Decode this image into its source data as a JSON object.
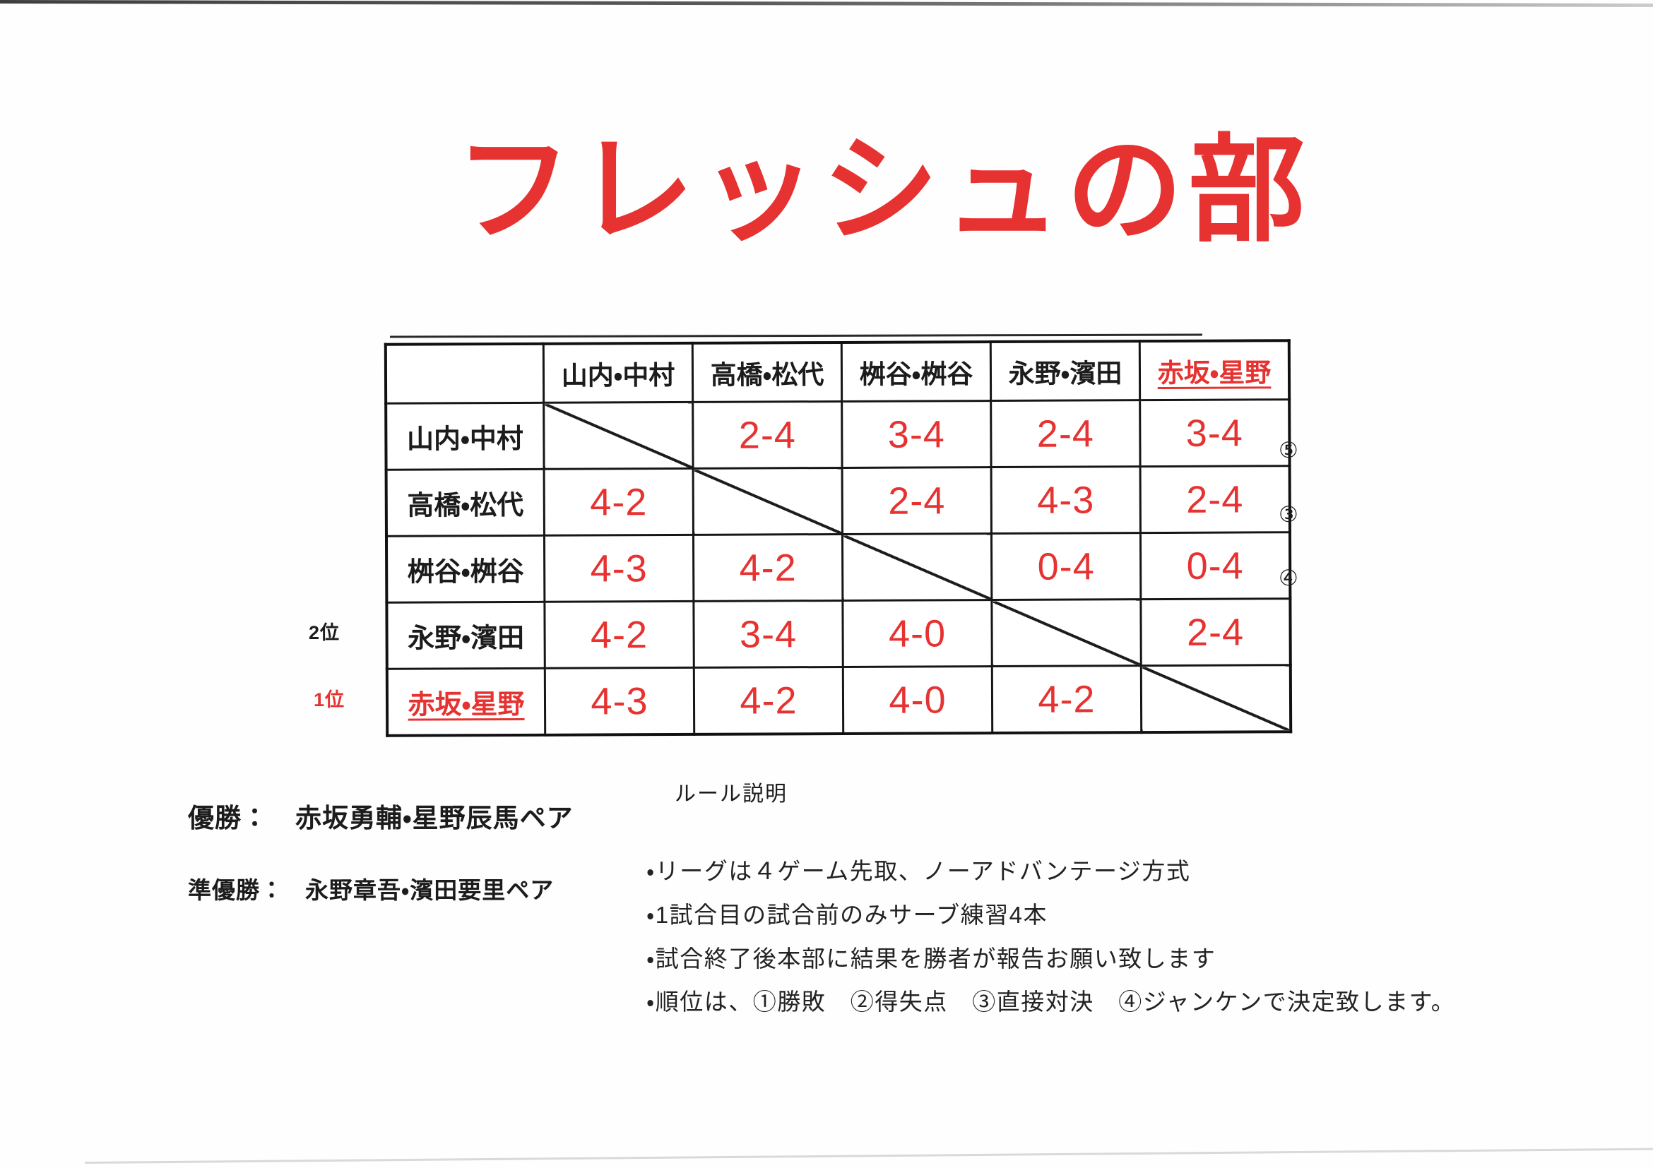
{
  "page": {
    "title": "フレッシュの部"
  },
  "colors": {
    "accent_red": "#e63230",
    "ink_black": "#1c1c1c"
  },
  "table": {
    "col_headers": [
      "山内・中村",
      "高橋・松代",
      "桝谷・桝谷",
      "永野・濱田",
      "赤坂・星野"
    ],
    "rows": [
      {
        "team": "山内・中村",
        "rank_label": "",
        "side_mark": "⑤",
        "scores": [
          "",
          "2-4",
          "3-4",
          "2-4",
          "3-4"
        ]
      },
      {
        "team": "高橋・松代",
        "rank_label": "",
        "side_mark": "③",
        "scores": [
          "4-2",
          "",
          "2-4",
          "4-3",
          "2-4"
        ]
      },
      {
        "team": "桝谷・桝谷",
        "rank_label": "",
        "side_mark": "④",
        "scores": [
          "4-3",
          "4-2",
          "",
          "0-4",
          "0-4"
        ]
      },
      {
        "team": "永野・濱田",
        "rank_label": "2位",
        "side_mark": "",
        "scores": [
          "4-2",
          "3-4",
          "4-0",
          "",
          "2-4"
        ]
      },
      {
        "team": "赤坂・星野",
        "rank_label": "1位",
        "side_mark": "",
        "scores": [
          "4-3",
          "4-2",
          "4-0",
          "4-2",
          ""
        ]
      }
    ]
  },
  "results": {
    "champion_label": "優勝：",
    "champion": "赤坂勇輔・星野辰馬ペア",
    "runner_up_label": "準優勝：",
    "runner_up": "永野章吾・濱田要里ペア"
  },
  "rules": {
    "heading": "ルール説明",
    "items": [
      "・リーグは４ゲーム先取、ノーアドバンテージ方式",
      "・1試合目の試合前のみサーブ練習4本",
      "・試合終了後本部に結果を勝者が報告お願い致します",
      "・順位は、①勝敗　②得失点　③直接対決　④ジャンケンで決定致します。"
    ]
  }
}
